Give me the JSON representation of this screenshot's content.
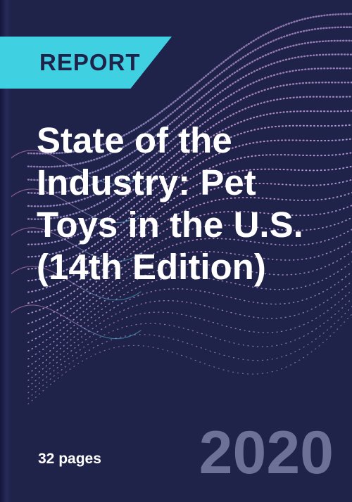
{
  "cover": {
    "badge": "REPORT",
    "title": "State of the Industry: Pet Toys in the U.S. (14th Edition)",
    "pages": "32 pages",
    "year": "2020"
  },
  "colors": {
    "background": "#1f2249",
    "accent": "#3fd1e2",
    "pink": "#f08fc8",
    "lavender": "#b9a6e6",
    "year": "#6d7198"
  }
}
